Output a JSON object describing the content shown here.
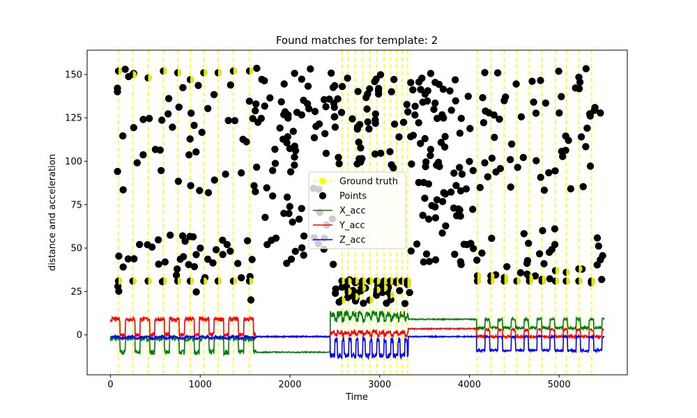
{
  "chart_data": {
    "type": "scatter",
    "title": "Found matches for template: 2",
    "xlabel": "Time",
    "ylabel": "distance and acceleration",
    "xlim": [
      -260,
      5760
    ],
    "ylim": [
      -23,
      164
    ],
    "xticks": [
      0,
      1000,
      2000,
      3000,
      4000,
      5000
    ],
    "yticks": [
      0,
      25,
      50,
      75,
      100,
      125,
      150
    ],
    "grid": false,
    "legend_position": "center",
    "colors": {
      "ground_truth": "#ffff00",
      "points": "#000000",
      "x_acc": "#008000",
      "y_acc": "#ff0000",
      "z_acc": "#0000ff"
    },
    "legend": [
      {
        "name": "Ground truth",
        "style": "dashed-line-marker",
        "color": "#ffff00"
      },
      {
        "name": "Points",
        "style": "marker",
        "color": "#000000"
      },
      {
        "name": "X_acc",
        "style": "line",
        "color": "#008000"
      },
      {
        "name": "Y_acc",
        "style": "line",
        "color": "#ff0000"
      },
      {
        "name": "Z_acc",
        "style": "line",
        "color": "#0000ff"
      }
    ],
    "ground_truth_x": [
      90,
      250,
      420,
      590,
      750,
      890,
      1040,
      1200,
      1370,
      1550,
      2580,
      2650,
      2730,
      2810,
      2890,
      2970,
      3050,
      3120,
      3190,
      3250,
      3310,
      4090,
      4240,
      4390,
      4530,
      4670,
      4810,
      4960,
      5080,
      5220,
      5360
    ],
    "ground_truth_y": [
      [
        31,
        152
      ],
      [
        31,
        150
      ],
      [
        31,
        148
      ],
      [
        31,
        152
      ],
      [
        31,
        151
      ],
      [
        31,
        147
      ],
      [
        31,
        151
      ],
      [
        31,
        151
      ],
      [
        31,
        152
      ],
      [
        31,
        152
      ],
      [
        31,
        20
      ],
      [
        31,
        25
      ],
      [
        31,
        22
      ],
      [
        31,
        27
      ],
      [
        31,
        20
      ],
      [
        31,
        26
      ],
      [
        31,
        27
      ],
      [
        31,
        23
      ],
      [
        31,
        30
      ],
      [
        31,
        31
      ],
      [
        31,
        29
      ],
      [
        31,
        34
      ],
      [
        31,
        34
      ],
      [
        31,
        33
      ],
      [
        31,
        31
      ],
      [
        31,
        33
      ],
      [
        31,
        32
      ],
      [
        31,
        37
      ],
      [
        31,
        36
      ],
      [
        31,
        38
      ],
      [
        31,
        30
      ]
    ],
    "scatter_seed": 7,
    "scatter_count": 430,
    "scatter_regions": [
      {
        "x": [
          0,
          1600
        ],
        "y_bands": [
          [
            18,
            60
          ],
          [
            80,
            155
          ]
        ]
      },
      {
        "x": [
          1600,
          2500
        ],
        "y_bands": [
          [
            40,
            155
          ]
        ]
      },
      {
        "x": [
          2500,
          3350
        ],
        "y_bands": [
          [
            18,
            32
          ],
          [
            95,
            152
          ]
        ]
      },
      {
        "x": [
          3350,
          4050
        ],
        "y_bands": [
          [
            37,
            152
          ]
        ]
      },
      {
        "x": [
          4050,
          5500
        ],
        "y_bands": [
          [
            30,
            62
          ],
          [
            75,
            155
          ]
        ]
      }
    ],
    "series": [
      {
        "name": "X_acc",
        "segments": [
          {
            "x": [
              0,
              1620
            ],
            "base": -10,
            "amp": 8,
            "period": 165,
            "noise": 1.5
          },
          {
            "x": [
              1620,
              2450
            ],
            "base": -10,
            "amp": 0,
            "period": 0,
            "noise": 0.3
          },
          {
            "x": [
              2450,
              3320
            ],
            "base": 9,
            "amp": 3,
            "period": 78,
            "noise": 1.8
          },
          {
            "x": [
              3320,
              4080
            ],
            "base": 9,
            "amp": 0,
            "period": 0,
            "noise": 0.3
          },
          {
            "x": [
              4080,
              5500
            ],
            "base": 9,
            "amp": -5,
            "period": 145,
            "noise": 0.8
          }
        ]
      },
      {
        "name": "Y_acc",
        "segments": [
          {
            "x": [
              0,
              1620
            ],
            "base": 0,
            "amp": 9,
            "period": 165,
            "noise": 1.2
          },
          {
            "x": [
              1620,
              2450
            ],
            "base": -1,
            "amp": 0,
            "period": 0,
            "noise": 0.3
          },
          {
            "x": [
              2450,
              3320
            ],
            "base": 0,
            "amp": 1.5,
            "period": 78,
            "noise": 1.2
          },
          {
            "x": [
              3320,
              4080
            ],
            "base": 3.5,
            "amp": 0,
            "period": 0,
            "noise": 0.3
          },
          {
            "x": [
              4080,
              5500
            ],
            "base": 3,
            "amp": -4,
            "period": 145,
            "noise": 0.7
          }
        ]
      },
      {
        "name": "Z_acc",
        "segments": [
          {
            "x": [
              0,
              1620
            ],
            "base": -2,
            "amp": 0.8,
            "period": 165,
            "noise": 0.6
          },
          {
            "x": [
              1620,
              2450
            ],
            "base": -1,
            "amp": 0,
            "period": 0,
            "noise": 0.3
          },
          {
            "x": [
              2450,
              3320
            ],
            "base": -3,
            "amp": -9,
            "period": 78,
            "noise": 1.5
          },
          {
            "x": [
              3320,
              4080
            ],
            "base": -1,
            "amp": 0,
            "period": 0,
            "noise": 0.3
          },
          {
            "x": [
              4080,
              5500
            ],
            "base": -1,
            "amp": -8,
            "period": 145,
            "noise": 0.7
          }
        ]
      }
    ]
  }
}
